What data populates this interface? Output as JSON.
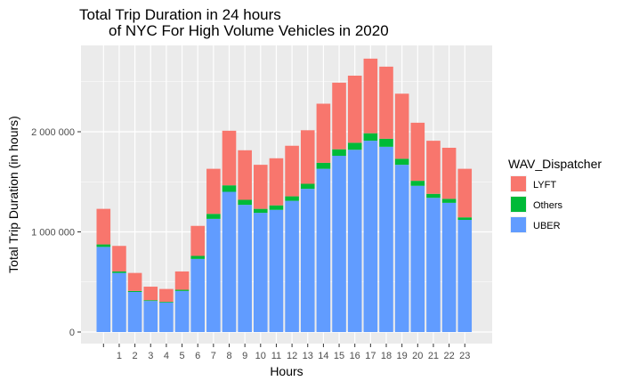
{
  "chart_data": {
    "type": "bar",
    "stacked": true,
    "title_line1": "Total Trip Duration in 24 hours",
    "title_line2": "of NYC For High Volume Vehicles in 2020",
    "xlabel": "Hours",
    "ylabel": "Total Trip Duration (in hours)",
    "categories": [
      "",
      "1",
      "2",
      "3",
      "4",
      "5",
      "6",
      "7",
      "8",
      "9",
      "10",
      "11",
      "12",
      "13",
      "14",
      "15",
      "16",
      "17",
      "18",
      "19",
      "20",
      "21",
      "22",
      "23"
    ],
    "ylim": [
      0,
      2800000
    ],
    "yticks": [
      0,
      1000000,
      2000000
    ],
    "ytick_labels": [
      "0",
      "1 000 000",
      "2 000 000"
    ],
    "grid": true,
    "panel_background": "#ebebeb",
    "legend": {
      "title": "WAV_Dispatcher",
      "position": "right",
      "items": [
        "LYFT",
        "Others",
        "UBER"
      ]
    },
    "series": [
      {
        "name": "UBER",
        "color": "#619cff",
        "values": [
          850000,
          590000,
          400000,
          310000,
          295000,
          410000,
          730000,
          1130000,
          1400000,
          1270000,
          1190000,
          1220000,
          1310000,
          1430000,
          1630000,
          1760000,
          1820000,
          1910000,
          1850000,
          1670000,
          1460000,
          1340000,
          1290000,
          1120000
        ]
      },
      {
        "name": "Others",
        "color": "#00ba38",
        "values": [
          25000,
          15000,
          10000,
          8000,
          7000,
          12000,
          30000,
          50000,
          65000,
          50000,
          40000,
          45000,
          45000,
          50000,
          60000,
          65000,
          70000,
          75000,
          80000,
          60000,
          50000,
          40000,
          40000,
          25000
        ]
      },
      {
        "name": "LYFT",
        "color": "#f8766d",
        "values": [
          355000,
          255000,
          180000,
          135000,
          128000,
          183000,
          300000,
          450000,
          545000,
          495000,
          440000,
          470000,
          505000,
          535000,
          590000,
          665000,
          670000,
          745000,
          720000,
          650000,
          580000,
          530000,
          510000,
          485000
        ]
      }
    ]
  }
}
